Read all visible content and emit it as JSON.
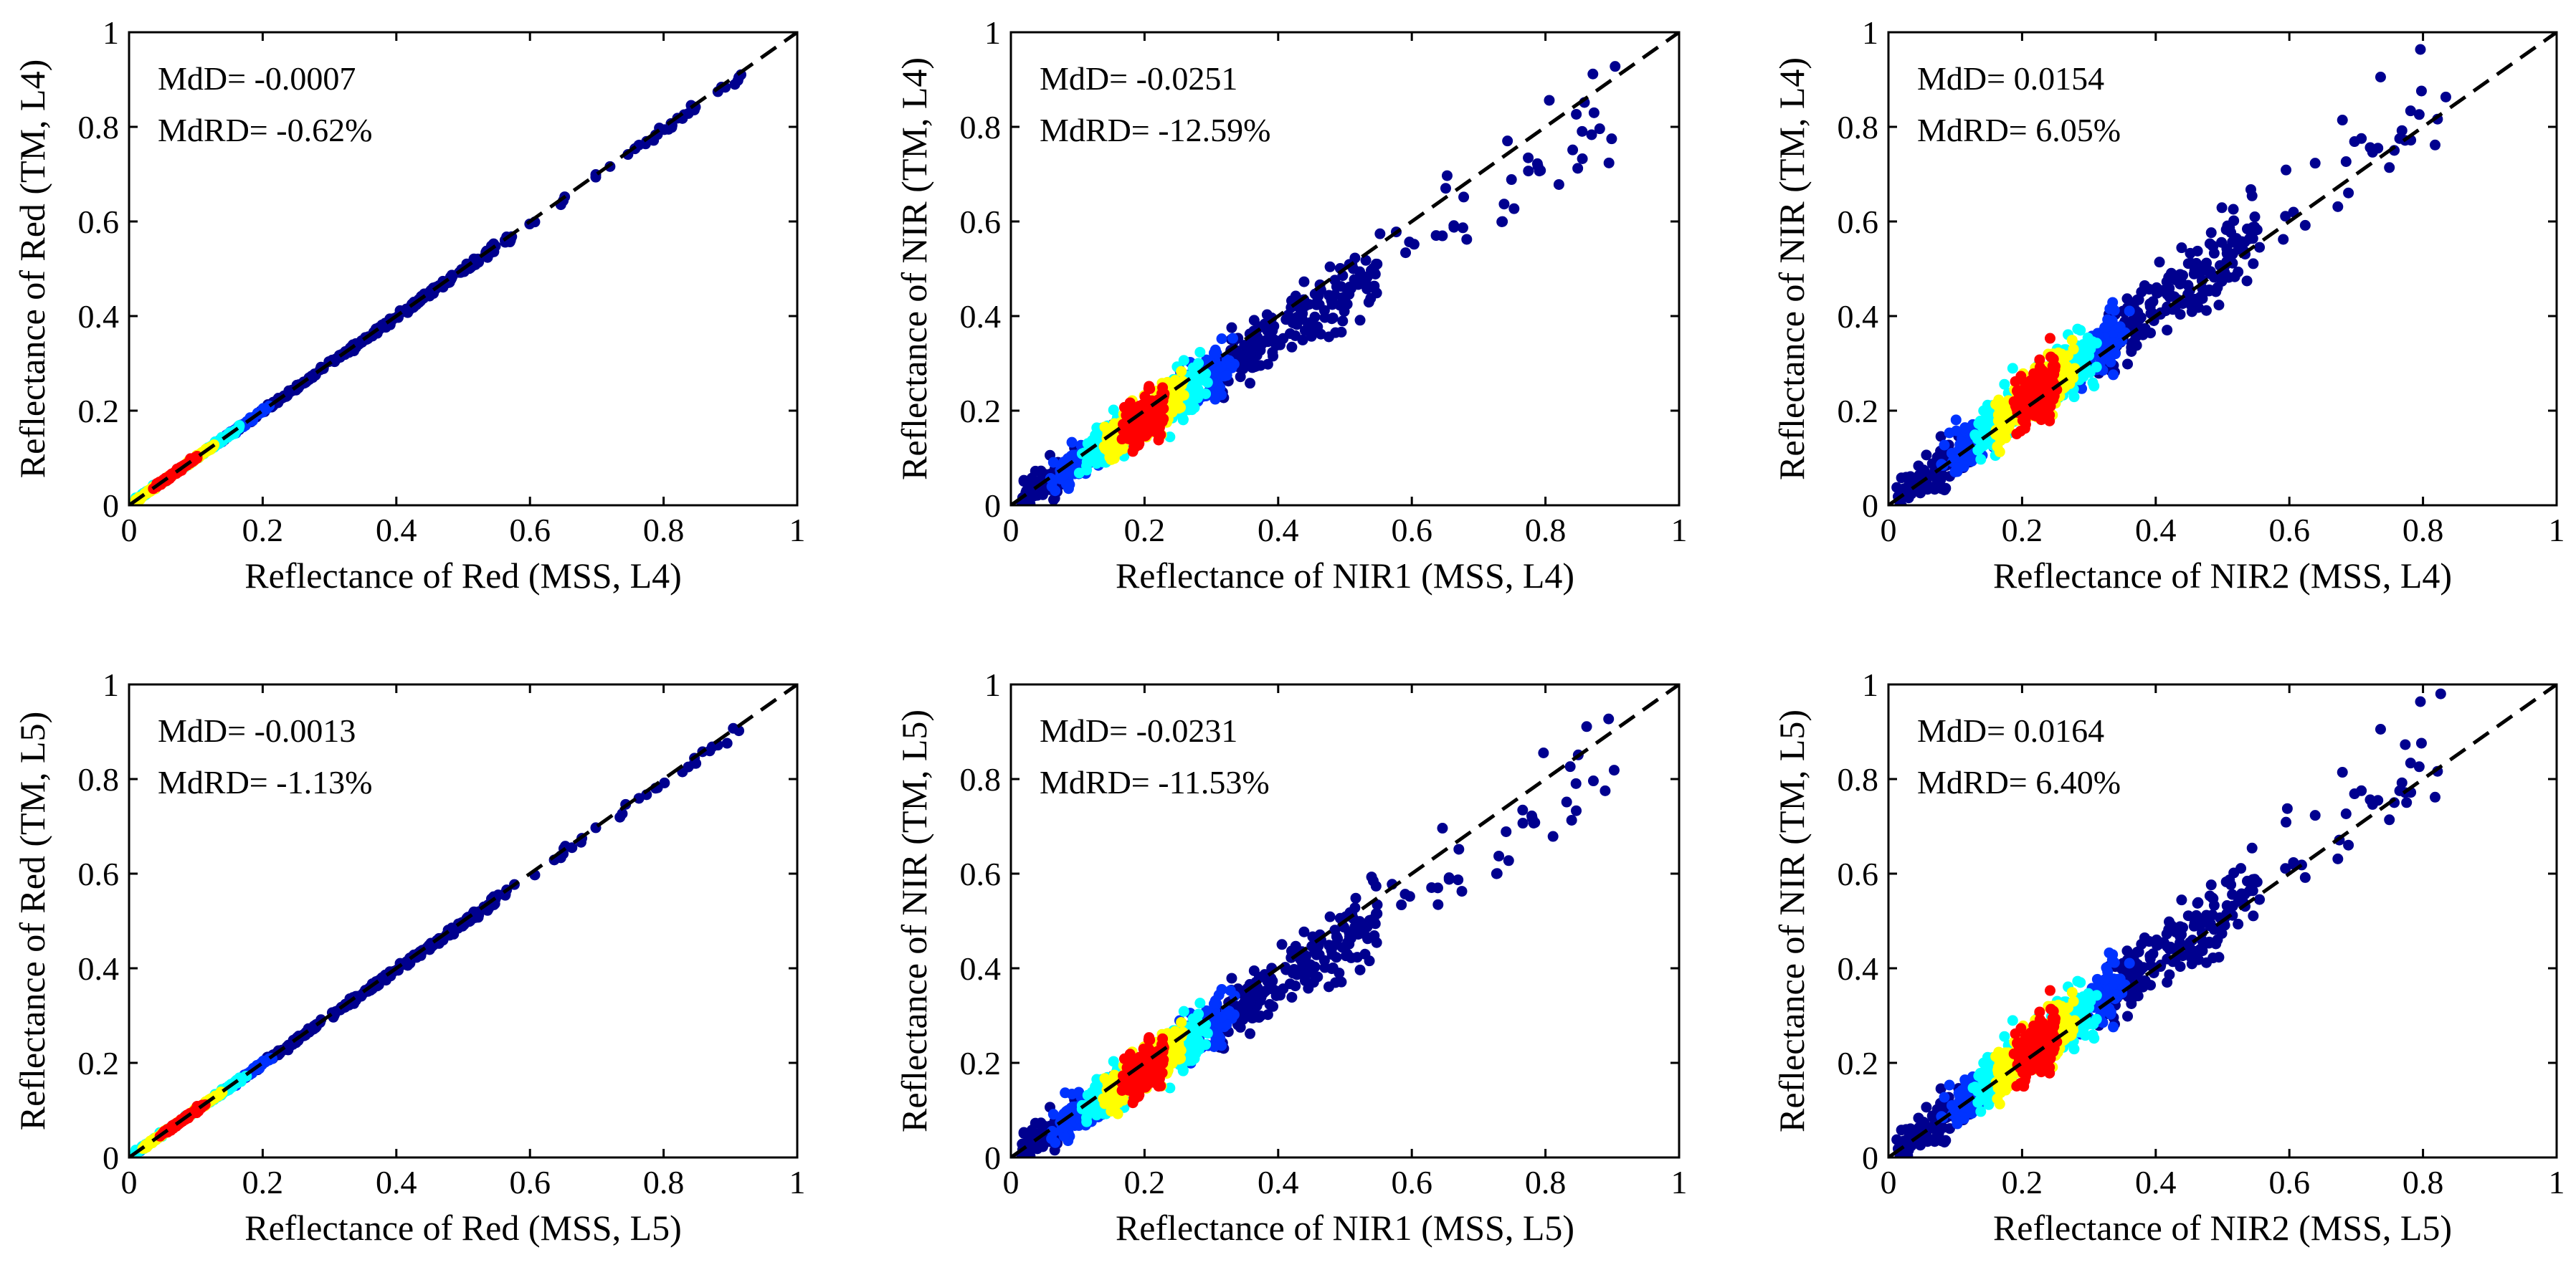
{
  "chart_data": [
    {
      "type": "scatter",
      "xlabel": "Reflectance of Red (MSS, L4)",
      "ylabel": "Reflectance of Red (TM, L4)",
      "xlim": [
        0,
        1
      ],
      "ylim": [
        0,
        1
      ],
      "xticks": [
        "0",
        "0.2",
        "0.4",
        "0.6",
        "0.8",
        "1"
      ],
      "yticks": [
        "0",
        "0.2",
        "0.4",
        "0.6",
        "0.8",
        "1"
      ],
      "annotations": [
        "MdD= -0.0007",
        "MdRD= -0.62%"
      ],
      "reference_line": {
        "x": [
          0,
          1
        ],
        "y": [
          0,
          1
        ],
        "style": "dashed"
      },
      "density_coloring": "jet colormap (blue low density, red high density)",
      "point_cloud": {
        "x_range": [
          0.01,
          0.93
        ],
        "slope": 0.993,
        "intercept": 0.0,
        "spread": 0.004,
        "dense_center": 0.07
      }
    },
    {
      "type": "scatter",
      "xlabel": "Reflectance of NIR1 (MSS, L4)",
      "ylabel": "Reflectance of NIR (TM, L4)",
      "xlim": [
        0,
        1
      ],
      "ylim": [
        0,
        1
      ],
      "xticks": [
        "0",
        "0.2",
        "0.4",
        "0.6",
        "0.8",
        "1"
      ],
      "yticks": [
        "0",
        "0.2",
        "0.4",
        "0.6",
        "0.8",
        "1"
      ],
      "annotations": [
        "MdD= -0.0251",
        "MdRD= -12.59%"
      ],
      "reference_line": {
        "x": [
          0,
          1
        ],
        "y": [
          0,
          1
        ],
        "style": "dashed"
      },
      "density_coloring": "jet colormap (blue low density, red high density)",
      "point_cloud": {
        "x_range": [
          0.01,
          0.93
        ],
        "slope": 0.91,
        "intercept": 0.0,
        "spread": 0.035,
        "dense_center": 0.2
      }
    },
    {
      "type": "scatter",
      "xlabel": "Reflectance of NIR2 (MSS, L4)",
      "ylabel": "Reflectance of NIR (TM, L4)",
      "xlim": [
        0,
        1
      ],
      "ylim": [
        0,
        1
      ],
      "xticks": [
        "0",
        "0.2",
        "0.4",
        "0.6",
        "0.8",
        "1"
      ],
      "yticks": [
        "0",
        "0.2",
        "0.4",
        "0.6",
        "0.8",
        "1"
      ],
      "annotations": [
        "MdD= 0.0154",
        "MdRD= 6.05%"
      ],
      "reference_line": {
        "x": [
          0,
          1
        ],
        "y": [
          0,
          1
        ],
        "style": "dashed"
      },
      "density_coloring": "jet colormap (blue low density, red high density)",
      "point_cloud": {
        "x_range": [
          0.01,
          0.85
        ],
        "slope": 1.05,
        "intercept": 0.0,
        "spread": 0.04,
        "dense_center": 0.22
      }
    },
    {
      "type": "scatter",
      "xlabel": "Reflectance of Red (MSS, L5)",
      "ylabel": "Reflectance of Red (TM, L5)",
      "xlim": [
        0,
        1
      ],
      "ylim": [
        0,
        1
      ],
      "xticks": [
        "0",
        "0.2",
        "0.4",
        "0.6",
        "0.8",
        "1"
      ],
      "yticks": [
        "0",
        "0.2",
        "0.4",
        "0.6",
        "0.8",
        "1"
      ],
      "annotations": [
        "MdD= -0.0013",
        "MdRD= -1.13%"
      ],
      "reference_line": {
        "x": [
          0,
          1
        ],
        "y": [
          0,
          1
        ],
        "style": "dashed"
      },
      "density_coloring": "jet colormap (blue low density, red high density)",
      "point_cloud": {
        "x_range": [
          0.01,
          0.93
        ],
        "slope": 0.99,
        "intercept": 0.0,
        "spread": 0.004,
        "dense_center": 0.08
      }
    },
    {
      "type": "scatter",
      "xlabel": "Reflectance of NIR1 (MSS, L5)",
      "ylabel": "Reflectance of NIR (TM, L5)",
      "xlim": [
        0,
        1
      ],
      "ylim": [
        0,
        1
      ],
      "xticks": [
        "0",
        "0.2",
        "0.4",
        "0.6",
        "0.8",
        "1"
      ],
      "yticks": [
        "0",
        "0.2",
        "0.4",
        "0.6",
        "0.8",
        "1"
      ],
      "annotations": [
        "MdD= -0.0231",
        "MdRD= -11.53%"
      ],
      "reference_line": {
        "x": [
          0,
          1
        ],
        "y": [
          0,
          1
        ],
        "style": "dashed"
      },
      "density_coloring": "jet colormap (blue low density, red high density)",
      "point_cloud": {
        "x_range": [
          0.01,
          0.92
        ],
        "slope": 0.92,
        "intercept": 0.0,
        "spread": 0.035,
        "dense_center": 0.2
      }
    },
    {
      "type": "scatter",
      "xlabel": "Reflectance of NIR2 (MSS, L5)",
      "ylabel": "Reflectance of NIR (TM, L5)",
      "xlim": [
        0,
        1
      ],
      "ylim": [
        0,
        1
      ],
      "xticks": [
        "0",
        "0.2",
        "0.4",
        "0.6",
        "0.8",
        "1"
      ],
      "yticks": [
        "0",
        "0.2",
        "0.4",
        "0.6",
        "0.8",
        "1"
      ],
      "annotations": [
        "MdD= 0.0164",
        "MdRD= 6.40%"
      ],
      "reference_line": {
        "x": [
          0,
          1
        ],
        "y": [
          0,
          1
        ],
        "style": "dashed"
      },
      "density_coloring": "jet colormap (blue low density, red high density)",
      "point_cloud": {
        "x_range": [
          0.01,
          0.85
        ],
        "slope": 1.05,
        "intercept": 0.0,
        "spread": 0.04,
        "dense_center": 0.22
      }
    }
  ],
  "colors": {
    "sparse": "#00008f",
    "low": "#0033ff",
    "mid": "#00ffff",
    "high": "#ffff00",
    "peak": "#ff0000",
    "reference_line": "#000000",
    "axes": "#000000"
  }
}
